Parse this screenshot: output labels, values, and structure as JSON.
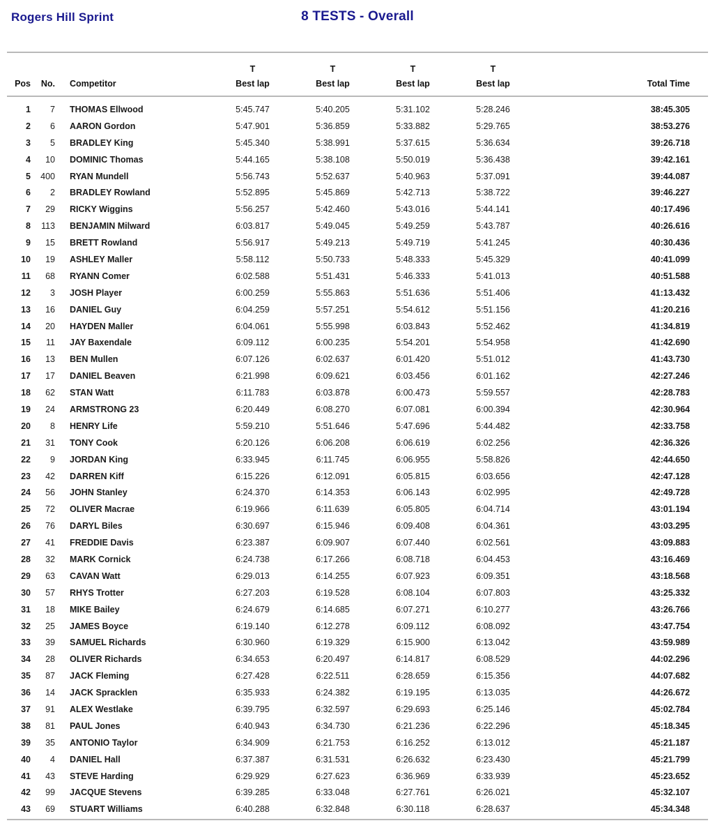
{
  "page": {
    "event_title": "Rogers Hill Sprint",
    "report_title": "8 TESTS - Overall"
  },
  "colors": {
    "accent_navy": "#1a1a8f",
    "rule_gray": "#b9b9b9"
  },
  "table": {
    "header": {
      "pos": "Pos",
      "no": "No.",
      "competitor": "Competitor",
      "t": "T",
      "best_lap": "Best lap",
      "total_time": "Total Time"
    },
    "rows": [
      {
        "pos": "1",
        "no": "7",
        "competitor": "THOMAS Ellwood",
        "laps": [
          "5:45.747",
          "5:40.205",
          "5:31.102",
          "5:28.246"
        ],
        "total": "38:45.305"
      },
      {
        "pos": "2",
        "no": "6",
        "competitor": "AARON Gordon",
        "laps": [
          "5:47.901",
          "5:36.859",
          "5:33.882",
          "5:29.765"
        ],
        "total": "38:53.276"
      },
      {
        "pos": "3",
        "no": "5",
        "competitor": "BRADLEY King",
        "laps": [
          "5:45.340",
          "5:38.991",
          "5:37.615",
          "5:36.634"
        ],
        "total": "39:26.718"
      },
      {
        "pos": "4",
        "no": "10",
        "competitor": "DOMINIC Thomas",
        "laps": [
          "5:44.165",
          "5:38.108",
          "5:50.019",
          "5:36.438"
        ],
        "total": "39:42.161"
      },
      {
        "pos": "5",
        "no": "400",
        "competitor": "RYAN Mundell",
        "laps": [
          "5:56.743",
          "5:52.637",
          "5:40.963",
          "5:37.091"
        ],
        "total": "39:44.087"
      },
      {
        "pos": "6",
        "no": "2",
        "competitor": "BRADLEY Rowland",
        "laps": [
          "5:52.895",
          "5:45.869",
          "5:42.713",
          "5:38.722"
        ],
        "total": "39:46.227"
      },
      {
        "pos": "7",
        "no": "29",
        "competitor": "RICKY Wiggins",
        "laps": [
          "5:56.257",
          "5:42.460",
          "5:43.016",
          "5:44.141"
        ],
        "total": "40:17.496"
      },
      {
        "pos": "8",
        "no": "113",
        "competitor": "BENJAMIN Milward",
        "laps": [
          "6:03.817",
          "5:49.045",
          "5:49.259",
          "5:43.787"
        ],
        "total": "40:26.616"
      },
      {
        "pos": "9",
        "no": "15",
        "competitor": "BRETT Rowland",
        "laps": [
          "5:56.917",
          "5:49.213",
          "5:49.719",
          "5:41.245"
        ],
        "total": "40:30.436"
      },
      {
        "pos": "10",
        "no": "19",
        "competitor": "ASHLEY Maller",
        "laps": [
          "5:58.112",
          "5:50.733",
          "5:48.333",
          "5:45.329"
        ],
        "total": "40:41.099"
      },
      {
        "pos": "11",
        "no": "68",
        "competitor": "RYANN Comer",
        "laps": [
          "6:02.588",
          "5:51.431",
          "5:46.333",
          "5:41.013"
        ],
        "total": "40:51.588"
      },
      {
        "pos": "12",
        "no": "3",
        "competitor": "JOSH Player",
        "laps": [
          "6:00.259",
          "5:55.863",
          "5:51.636",
          "5:51.406"
        ],
        "total": "41:13.432"
      },
      {
        "pos": "13",
        "no": "16",
        "competitor": "DANIEL Guy",
        "laps": [
          "6:04.259",
          "5:57.251",
          "5:54.612",
          "5:51.156"
        ],
        "total": "41:20.216"
      },
      {
        "pos": "14",
        "no": "20",
        "competitor": "HAYDEN Maller",
        "laps": [
          "6:04.061",
          "5:55.998",
          "6:03.843",
          "5:52.462"
        ],
        "total": "41:34.819"
      },
      {
        "pos": "15",
        "no": "11",
        "competitor": "JAY Baxendale",
        "laps": [
          "6:09.112",
          "6:00.235",
          "5:54.201",
          "5:54.958"
        ],
        "total": "41:42.690"
      },
      {
        "pos": "16",
        "no": "13",
        "competitor": "BEN Mullen",
        "laps": [
          "6:07.126",
          "6:02.637",
          "6:01.420",
          "5:51.012"
        ],
        "total": "41:43.730"
      },
      {
        "pos": "17",
        "no": "17",
        "competitor": "DANIEL Beaven",
        "laps": [
          "6:21.998",
          "6:09.621",
          "6:03.456",
          "6:01.162"
        ],
        "total": "42:27.246"
      },
      {
        "pos": "18",
        "no": "62",
        "competitor": "STAN Watt",
        "laps": [
          "6:11.783",
          "6:03.878",
          "6:00.473",
          "5:59.557"
        ],
        "total": "42:28.783"
      },
      {
        "pos": "19",
        "no": "24",
        "competitor": "ARMSTRONG 23",
        "laps": [
          "6:20.449",
          "6:08.270",
          "6:07.081",
          "6:00.394"
        ],
        "total": "42:30.964"
      },
      {
        "pos": "20",
        "no": "8",
        "competitor": "HENRY Life",
        "laps": [
          "5:59.210",
          "5:51.646",
          "5:47.696",
          "5:44.482"
        ],
        "total": "42:33.758"
      },
      {
        "pos": "21",
        "no": "31",
        "competitor": "TONY Cook",
        "laps": [
          "6:20.126",
          "6:06.208",
          "6:06.619",
          "6:02.256"
        ],
        "total": "42:36.326"
      },
      {
        "pos": "22",
        "no": "9",
        "competitor": "JORDAN King",
        "laps": [
          "6:33.945",
          "6:11.745",
          "6:06.955",
          "5:58.826"
        ],
        "total": "42:44.650"
      },
      {
        "pos": "23",
        "no": "42",
        "competitor": "DARREN Kiff",
        "laps": [
          "6:15.226",
          "6:12.091",
          "6:05.815",
          "6:03.656"
        ],
        "total": "42:47.128"
      },
      {
        "pos": "24",
        "no": "56",
        "competitor": "JOHN Stanley",
        "laps": [
          "6:24.370",
          "6:14.353",
          "6:06.143",
          "6:02.995"
        ],
        "total": "42:49.728"
      },
      {
        "pos": "25",
        "no": "72",
        "competitor": "OLIVER Macrae",
        "laps": [
          "6:19.966",
          "6:11.639",
          "6:05.805",
          "6:04.714"
        ],
        "total": "43:01.194"
      },
      {
        "pos": "26",
        "no": "76",
        "competitor": "DARYL Biles",
        "laps": [
          "6:30.697",
          "6:15.946",
          "6:09.408",
          "6:04.361"
        ],
        "total": "43:03.295"
      },
      {
        "pos": "27",
        "no": "41",
        "competitor": "FREDDIE Davis",
        "laps": [
          "6:23.387",
          "6:09.907",
          "6:07.440",
          "6:02.561"
        ],
        "total": "43:09.883"
      },
      {
        "pos": "28",
        "no": "32",
        "competitor": "MARK Cornick",
        "laps": [
          "6:24.738",
          "6:17.266",
          "6:08.718",
          "6:04.453"
        ],
        "total": "43:16.469"
      },
      {
        "pos": "29",
        "no": "63",
        "competitor": "CAVAN Watt",
        "laps": [
          "6:29.013",
          "6:14.255",
          "6:07.923",
          "6:09.351"
        ],
        "total": "43:18.568"
      },
      {
        "pos": "30",
        "no": "57",
        "competitor": "RHYS Trotter",
        "laps": [
          "6:27.203",
          "6:19.528",
          "6:08.104",
          "6:07.803"
        ],
        "total": "43:25.332"
      },
      {
        "pos": "31",
        "no": "18",
        "competitor": "MIKE Bailey",
        "laps": [
          "6:24.679",
          "6:14.685",
          "6:07.271",
          "6:10.277"
        ],
        "total": "43:26.766"
      },
      {
        "pos": "32",
        "no": "25",
        "competitor": "JAMES Boyce",
        "laps": [
          "6:19.140",
          "6:12.278",
          "6:09.112",
          "6:08.092"
        ],
        "total": "43:47.754"
      },
      {
        "pos": "33",
        "no": "39",
        "competitor": "SAMUEL Richards",
        "laps": [
          "6:30.960",
          "6:19.329",
          "6:15.900",
          "6:13.042"
        ],
        "total": "43:59.989"
      },
      {
        "pos": "34",
        "no": "28",
        "competitor": "OLIVER Richards",
        "laps": [
          "6:34.653",
          "6:20.497",
          "6:14.817",
          "6:08.529"
        ],
        "total": "44:02.296"
      },
      {
        "pos": "35",
        "no": "87",
        "competitor": "JACK Fleming",
        "laps": [
          "6:27.428",
          "6:22.511",
          "6:28.659",
          "6:15.356"
        ],
        "total": "44:07.682"
      },
      {
        "pos": "36",
        "no": "14",
        "competitor": "JACK Spracklen",
        "laps": [
          "6:35.933",
          "6:24.382",
          "6:19.195",
          "6:13.035"
        ],
        "total": "44:26.672"
      },
      {
        "pos": "37",
        "no": "91",
        "competitor": "ALEX Westlake",
        "laps": [
          "6:39.795",
          "6:32.597",
          "6:29.693",
          "6:25.146"
        ],
        "total": "45:02.784"
      },
      {
        "pos": "38",
        "no": "81",
        "competitor": "PAUL Jones",
        "laps": [
          "6:40.943",
          "6:34.730",
          "6:21.236",
          "6:22.296"
        ],
        "total": "45:18.345"
      },
      {
        "pos": "39",
        "no": "35",
        "competitor": "ANTONIO Taylor",
        "laps": [
          "6:34.909",
          "6:21.753",
          "6:16.252",
          "6:13.012"
        ],
        "total": "45:21.187"
      },
      {
        "pos": "40",
        "no": "4",
        "competitor": "DANIEL Hall",
        "laps": [
          "6:37.387",
          "6:31.531",
          "6:26.632",
          "6:23.430"
        ],
        "total": "45:21.799"
      },
      {
        "pos": "41",
        "no": "43",
        "competitor": "STEVE Harding",
        "laps": [
          "6:29.929",
          "6:27.623",
          "6:36.969",
          "6:33.939"
        ],
        "total": "45:23.652"
      },
      {
        "pos": "42",
        "no": "99",
        "competitor": "JACQUE Stevens",
        "laps": [
          "6:39.285",
          "6:33.048",
          "6:27.761",
          "6:26.021"
        ],
        "total": "45:32.107"
      },
      {
        "pos": "43",
        "no": "69",
        "competitor": "STUART Williams",
        "laps": [
          "6:40.288",
          "6:32.848",
          "6:30.118",
          "6:28.637"
        ],
        "total": "45:34.348"
      }
    ]
  }
}
